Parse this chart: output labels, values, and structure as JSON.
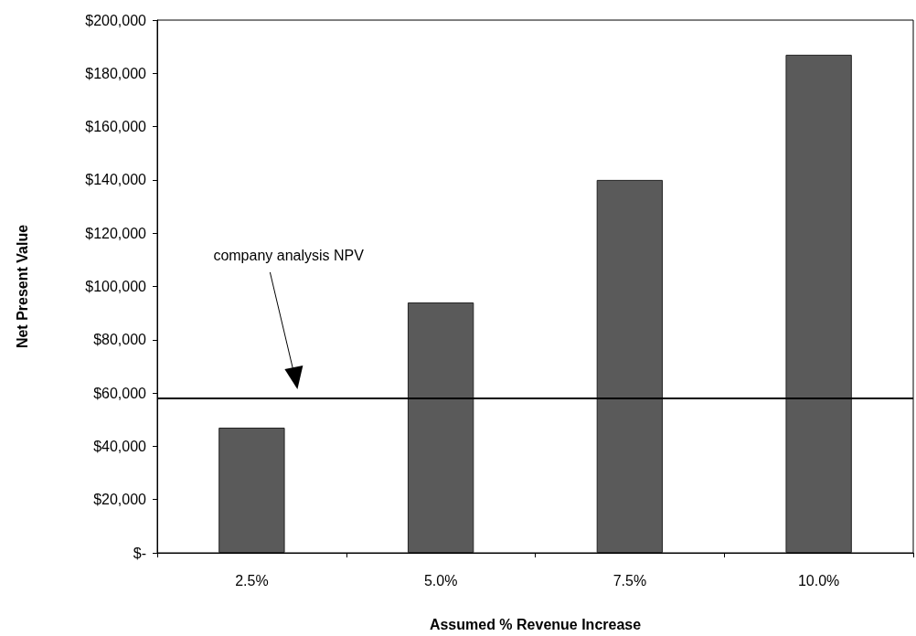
{
  "chart_data": {
    "type": "bar",
    "xlabel": "Assumed % Revenue Increase",
    "ylabel": "Net Present Value",
    "categories": [
      "2.5%",
      "5.0%",
      "7.5%",
      "10.0%"
    ],
    "values": [
      47000,
      94000,
      140000,
      187000
    ],
    "color": "#5a5a5a",
    "ylim": [
      0,
      200000
    ],
    "yticks": [
      {
        "value": 0,
        "label": "$-"
      },
      {
        "value": 20000,
        "label": "$20,000"
      },
      {
        "value": 40000,
        "label": "$40,000"
      },
      {
        "value": 60000,
        "label": "$60,000"
      },
      {
        "value": 80000,
        "label": "$80,000"
      },
      {
        "value": 100000,
        "label": "$100,000"
      },
      {
        "value": 120000,
        "label": "$120,000"
      },
      {
        "value": 140000,
        "label": "$140,000"
      },
      {
        "value": 160000,
        "label": "$160,000"
      },
      {
        "value": 180000,
        "label": "$180,000"
      },
      {
        "value": 200000,
        "label": "$200,000"
      }
    ],
    "ref_lines": [
      {
        "axis": "y",
        "value": 58000,
        "label": "company analysis NPV",
        "color": "#000000"
      }
    ],
    "grid": false
  }
}
